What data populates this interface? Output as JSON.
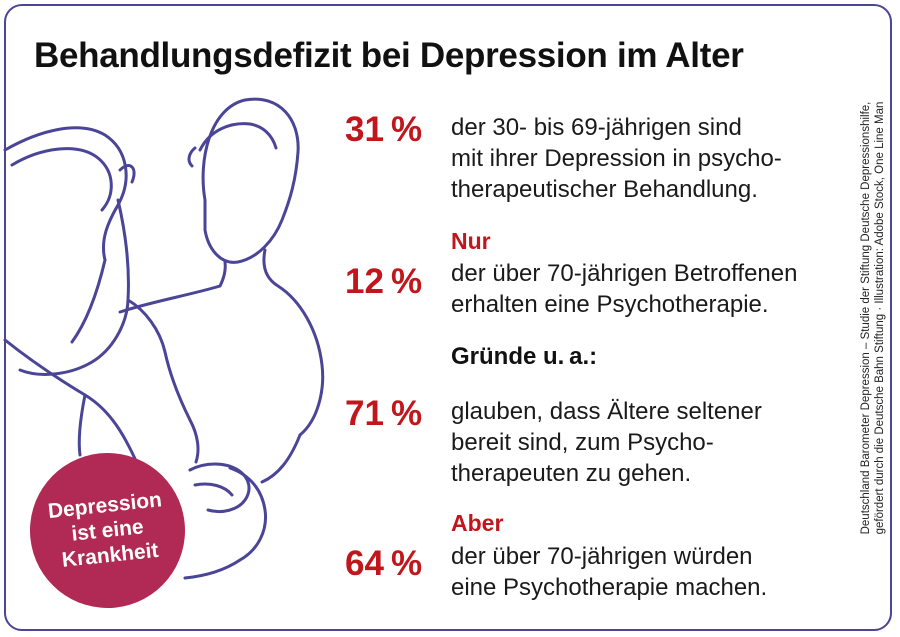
{
  "title": "Behandlungsdefizit bei Depression im Alter",
  "stats": [
    {
      "percent": "31 %",
      "lead": "",
      "line1": "der 30- bis 69-jährigen sind",
      "line2": "mit ihrer Depression in psycho-",
      "line3": "therapeutischer Behandlung."
    },
    {
      "percent": "12 %",
      "lead": "Nur",
      "line1": "der über 70-jährigen Betroffenen",
      "line2": "erhalten eine Psychotherapie.",
      "line3": ""
    },
    {
      "percent": "71 %",
      "lead": "",
      "line1": "glauben, dass Ältere seltener",
      "line2": "bereit sind, zum Psycho-",
      "line3": "therapeuten zu gehen."
    },
    {
      "percent": "64 %",
      "lead": "Aber",
      "line1": "der über 70-jährigen würden",
      "line2": "eine Psychotherapie machen.",
      "line3": ""
    }
  ],
  "reasons_heading": "Gründe u. a.:",
  "badge": {
    "line1": "Depression",
    "line2": "ist eine",
    "line3": "Krankheit"
  },
  "credit": {
    "line1": "Deutschland Barometer Depression – Studie der Stiftung Deutsche Depressionshilfe,",
    "line2": "gefördert durch die Deutsche Bahn Stiftung · Illustration: Adobe Stock, One Line Man"
  },
  "colors": {
    "accent_red": "#c0161c",
    "line_art": "#4a4596",
    "badge": "#b02a55",
    "frame": "#4a4596"
  }
}
